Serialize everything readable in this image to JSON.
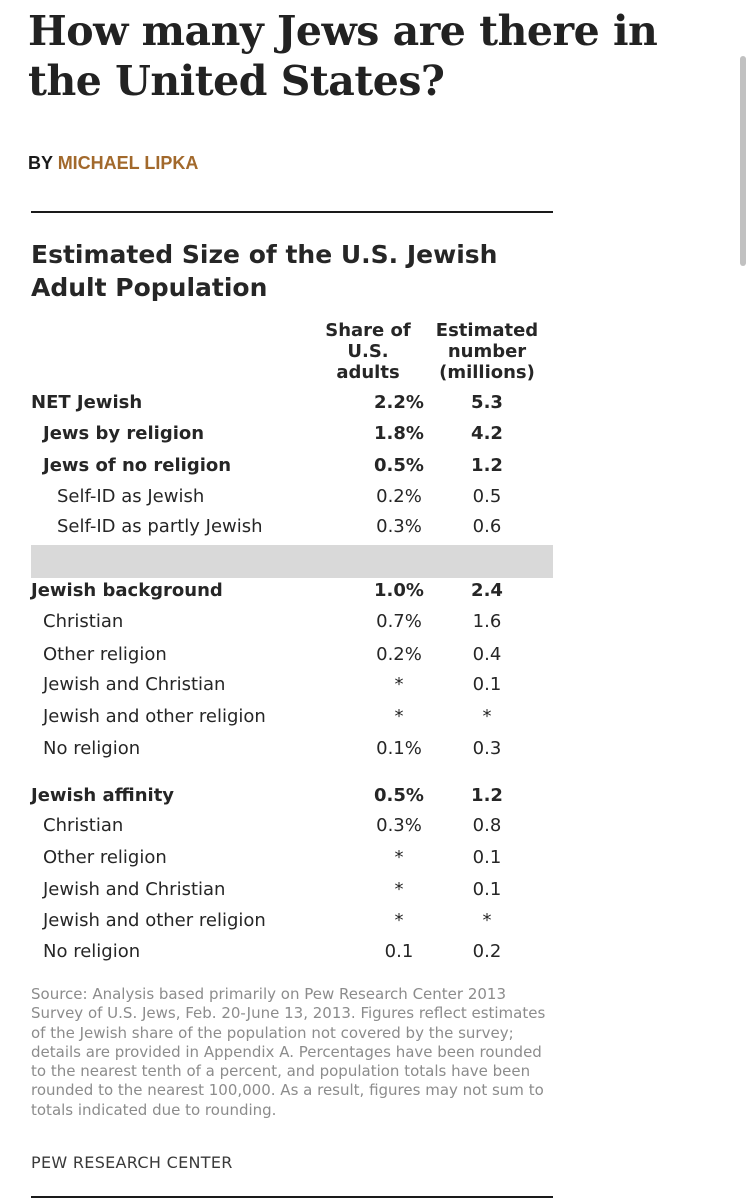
{
  "article": {
    "headline": "How many Jews are there in the United States?",
    "by_prefix": "BY ",
    "author": "MICHAEL LIPKA"
  },
  "figure": {
    "title": "Estimated Size of the U.S. Jewish Adult Population",
    "col_share": "Share of U.S. adults",
    "col_estimate": "Estimated number (millions)",
    "rows": [
      {
        "label": "NET Jewish",
        "share": "2.2%",
        "est": "5.3"
      },
      {
        "label": "Jews by religion",
        "share": "1.8%",
        "est": "4.2"
      },
      {
        "label": "Jews of no religion",
        "share": "0.5%",
        "est": "1.2"
      },
      {
        "label": "Self-ID as Jewish",
        "share": "0.2%",
        "est": "0.5"
      },
      {
        "label": "Self-ID as partly Jewish",
        "share": "0.3%",
        "est": "0.6"
      },
      {
        "label": "Jewish background",
        "share": "1.0%",
        "est": "2.4"
      },
      {
        "label": "Christian",
        "share": "0.7%",
        "est": "1.6"
      },
      {
        "label": "Other religion",
        "share": "0.2%",
        "est": "0.4"
      },
      {
        "label": "Jewish and Christian",
        "share": "*",
        "est": "0.1"
      },
      {
        "label": "Jewish and other religion",
        "share": "*",
        "est": "*"
      },
      {
        "label": "No religion",
        "share": "0.1%",
        "est": "0.3"
      },
      {
        "label": "Jewish affinity",
        "share": "0.5%",
        "est": "1.2"
      },
      {
        "label": "Christian",
        "share": "0.3%",
        "est": "0.8"
      },
      {
        "label": "Other religion",
        "share": "*",
        "est": "0.1"
      },
      {
        "label": "Jewish and Christian",
        "share": "*",
        "est": "0.1"
      },
      {
        "label": "Jewish and other religion",
        "share": "*",
        "est": "*"
      },
      {
        "label": "No religion",
        "share": "0.1",
        "est": "0.2"
      }
    ],
    "source": "Source: Analysis based primarily on Pew Research Center 2013 Survey of U.S. Jews, Feb. 20-June 13, 2013. Figures reflect estimates of the Jewish share of the population not covered by the survey; details are provided in Appendix A. Percentages have been rounded to the nearest tenth of a percent, and population totals have been rounded to the nearest 100,000. As a result, figures may not sum to totals indicated due to rounding.",
    "credit": "PEW RESEARCH CENTER"
  }
}
